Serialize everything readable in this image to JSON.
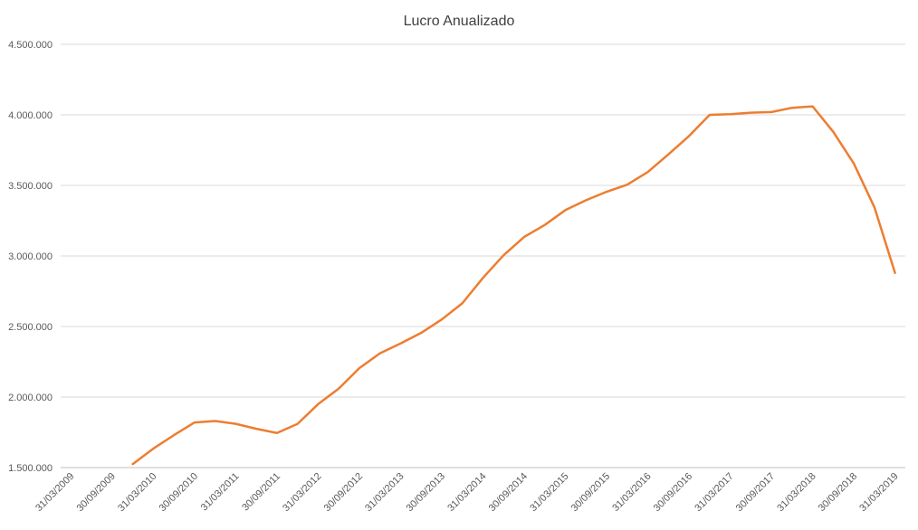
{
  "chart_data": {
    "type": "line",
    "title": "Lucro Anualizado",
    "categories": [
      "31/03/2009",
      null,
      "30/09/2009",
      null,
      "31/03/2010",
      null,
      "30/09/2010",
      null,
      "31/03/2011",
      null,
      "30/09/2011",
      null,
      "31/03/2012",
      null,
      "30/09/2012",
      null,
      "31/03/2013",
      null,
      "30/09/2013",
      null,
      "31/03/2014",
      null,
      "30/09/2014",
      null,
      "31/03/2015",
      null,
      "30/09/2015",
      null,
      "31/03/2016",
      null,
      "30/09/2016",
      null,
      "31/03/2017",
      null,
      "30/09/2017",
      null,
      "31/03/2018",
      null,
      "30/09/2018",
      null,
      "31/03/2019"
    ],
    "series": [
      {
        "name": "Lucro Anualizado",
        "color": "#ed7d31",
        "values": [
          null,
          null,
          null,
          1525000,
          1635000,
          1730000,
          1820000,
          1830000,
          1810000,
          1775000,
          1745000,
          1810000,
          1950000,
          2060000,
          2205000,
          2310000,
          2380000,
          2455000,
          2550000,
          2665000,
          2845000,
          3005000,
          3135000,
          3220000,
          3325000,
          3395000,
          3455000,
          3505000,
          3595000,
          3720000,
          3850000,
          4000000,
          4005000,
          4015000,
          4020000,
          4050000,
          4060000,
          3880000,
          3655000,
          3345000,
          2880000
        ]
      }
    ],
    "ylim": [
      1500000,
      4500000
    ],
    "yticks": [
      {
        "value": 1500000,
        "label": "1.500.000"
      },
      {
        "value": 2000000,
        "label": "2.000.000"
      },
      {
        "value": 2500000,
        "label": "2.500.000"
      },
      {
        "value": 3000000,
        "label": "3.000.000"
      },
      {
        "value": 3500000,
        "label": "3.500.000"
      },
      {
        "value": 4000000,
        "label": "4.000.000"
      },
      {
        "value": 4500000,
        "label": "4.500.000"
      }
    ],
    "grid": true
  }
}
